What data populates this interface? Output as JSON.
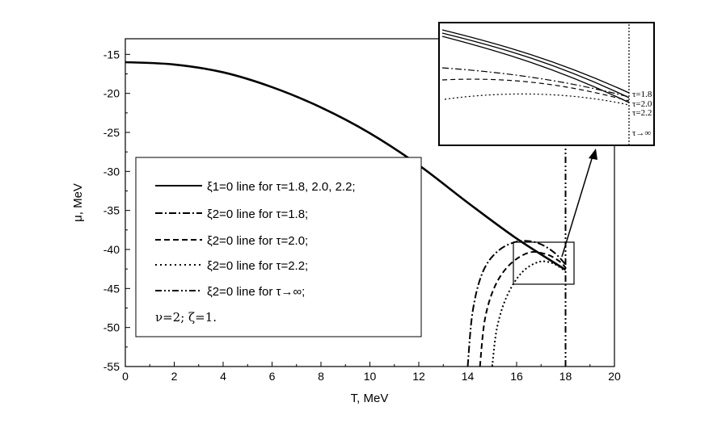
{
  "chart_data": {
    "type": "line",
    "title": "",
    "xlabel": "T, MeV",
    "ylabel": "μ, MeV",
    "xlim": [
      0,
      20
    ],
    "ylim": [
      -55,
      -13
    ],
    "x_ticks": [
      "0",
      "2",
      "4",
      "6",
      "8",
      "10",
      "12",
      "14",
      "16",
      "18",
      "20"
    ],
    "y_ticks": [
      "-15",
      "-20",
      "-25",
      "-30",
      "-35",
      "-40",
      "-45",
      "-50",
      "-55"
    ],
    "vertical_line_x": 18,
    "grid": false,
    "series": [
      {
        "name": "ξ1=0 line for τ=1.8, 2.0, 2.2;",
        "style": "solid",
        "points": [
          [
            0,
            -16
          ],
          [
            2,
            -16.3
          ],
          [
            4,
            -17.3
          ],
          [
            6,
            -19.2
          ],
          [
            8,
            -21.8
          ],
          [
            10,
            -25.1
          ],
          [
            12,
            -29.2
          ],
          [
            14,
            -34.0
          ],
          [
            16,
            -38.6
          ],
          [
            18,
            -42.6
          ]
        ]
      },
      {
        "name": "ξ2=0 line for τ=1.8;",
        "style": "dashdot",
        "points": [
          [
            14.0,
            -55
          ],
          [
            14.2,
            -48
          ],
          [
            14.6,
            -43
          ],
          [
            15.2,
            -40.3
          ],
          [
            16.0,
            -39.0
          ],
          [
            16.8,
            -39.1
          ],
          [
            17.5,
            -40.3
          ],
          [
            18.0,
            -41.9
          ]
        ]
      },
      {
        "name": "ξ2=0 line for τ=2.0;",
        "style": "dashed",
        "points": [
          [
            14.5,
            -55
          ],
          [
            14.7,
            -49
          ],
          [
            15.1,
            -44.8
          ],
          [
            15.7,
            -42.0
          ],
          [
            16.5,
            -40.4
          ],
          [
            17.2,
            -40.6
          ],
          [
            17.7,
            -41.4
          ],
          [
            18.0,
            -42.3
          ]
        ]
      },
      {
        "name": "ξ2=0 line for τ=2.2;",
        "style": "dotted",
        "points": [
          [
            15.0,
            -55
          ],
          [
            15.2,
            -50
          ],
          [
            15.6,
            -46.0
          ],
          [
            16.2,
            -43.0
          ],
          [
            16.9,
            -41.6
          ],
          [
            17.5,
            -41.8
          ],
          [
            18.0,
            -42.8
          ]
        ]
      },
      {
        "name": "ξ2=0 line for τ→∞;",
        "style": "dashdotdot",
        "points": [
          [
            18,
            -55
          ],
          [
            18,
            -13
          ]
        ]
      }
    ],
    "legend_note": "ν=2; ζ=1.",
    "legend_placement": "lower-left",
    "inset": {
      "labels": [
        "τ=1.8",
        "τ=2.0",
        "τ=2.2",
        "τ→∞"
      ]
    }
  }
}
